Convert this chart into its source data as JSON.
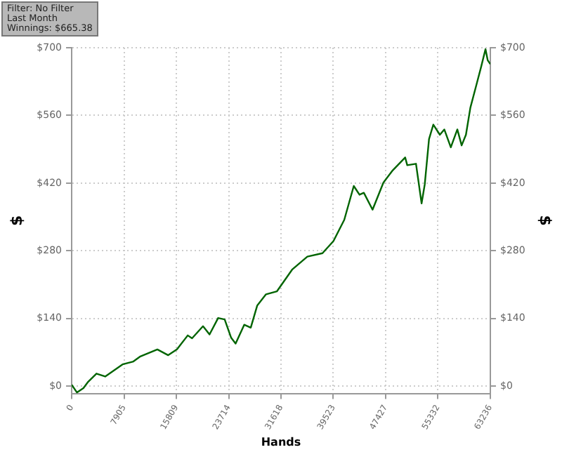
{
  "chart_data": {
    "type": "line",
    "annotations": [
      "Filter: No Filter",
      "Last Month",
      "Winnings: $665.38"
    ],
    "xlabel": "Hands",
    "ylabel": "$",
    "y2label": "$",
    "x": [
      0,
      788,
      1773,
      2423,
      3743,
      5063,
      7683,
      9318,
      10303,
      12943,
      14578,
      15898,
      17533,
      18183,
      19838,
      20823,
      22123,
      23108,
      24093,
      24763,
      26063,
      27048,
      28033,
      29353,
      30988,
      33293,
      35598,
      37883,
      39538,
      41173,
      42611,
      43478,
      44128,
      45448,
      47083,
      48403,
      50373,
      50688,
      52008,
      52855,
      53328,
      53978,
      54628,
      55613,
      56283,
      57268,
      58253,
      58903,
      59553,
      60223,
      61208,
      61858,
      62508,
      62843,
      63236
    ],
    "series": [
      {
        "color": "#006400",
        "values": [
          3,
          -13,
          -4,
          8,
          26,
          20,
          45,
          51,
          61,
          76,
          64,
          76,
          105,
          99,
          124,
          107,
          141,
          138,
          100,
          88,
          127,
          121,
          167,
          190,
          196,
          241,
          268,
          275,
          300,
          344,
          414,
          396,
          400,
          365,
          421,
          445,
          473,
          457,
          460,
          378,
          417,
          511,
          541,
          520,
          531,
          494,
          531,
          498,
          520,
          576,
          627,
          661,
          697,
          674,
          666
        ]
      }
    ],
    "xlim": [
      0,
      63236
    ],
    "xticks": [
      0,
      7905,
      15809,
      23714,
      31618,
      39523,
      47427,
      55332,
      63236
    ],
    "ylim": [
      -15,
      700
    ],
    "yticks": [
      {
        "value": 0,
        "label": "$0"
      },
      {
        "value": 140,
        "label": "$140"
      },
      {
        "value": 280,
        "label": "$280"
      },
      {
        "value": 420,
        "label": "$420"
      },
      {
        "value": 560,
        "label": "$560"
      },
      {
        "value": 700,
        "label": "$700"
      }
    ],
    "y2lim": [
      -15,
      700
    ],
    "y2ticks": [
      {
        "value": 0,
        "label": "$0"
      },
      {
        "value": 140,
        "label": "$140"
      },
      {
        "value": 280,
        "label": "$280"
      },
      {
        "value": 420,
        "label": "$420"
      },
      {
        "value": 560,
        "label": "$560"
      },
      {
        "value": 700,
        "label": "$700"
      }
    ],
    "grid": true,
    "legend": false,
    "marker": "none",
    "line_style": "solid"
  }
}
